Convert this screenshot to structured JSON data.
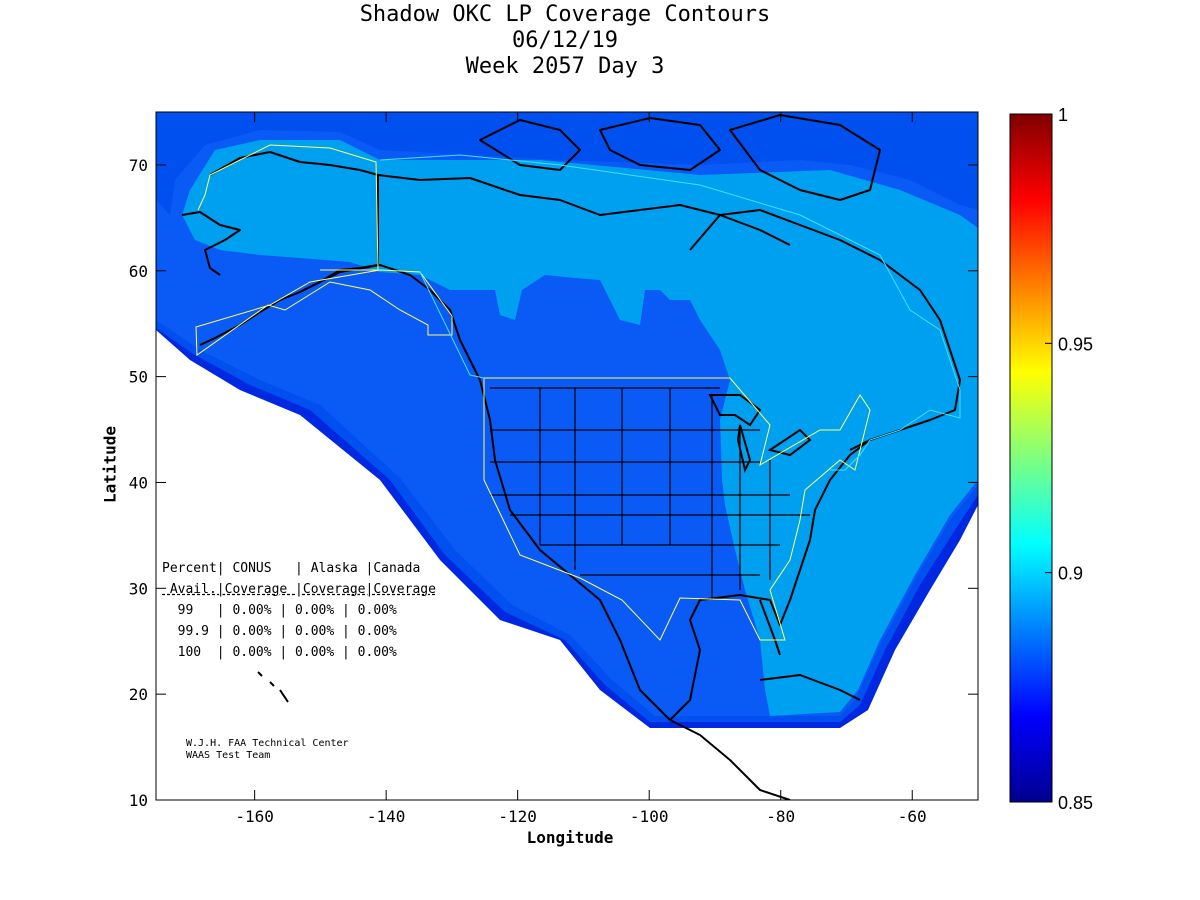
{
  "title": {
    "line1": "Shadow OKC LP Coverage Contours",
    "line2": "06/12/19",
    "line3": "Week 2057 Day 3"
  },
  "axes": {
    "xlabel": "Longitude",
    "ylabel": "Latitude",
    "xticks": [
      "-160",
      "-140",
      "-120",
      "-100",
      "-80",
      "-60"
    ],
    "yticks": [
      "70",
      "60",
      "50",
      "40",
      "30",
      "20",
      "10"
    ]
  },
  "colorbar": {
    "ticks": [
      "1",
      "0.95",
      "0.9",
      "0.85"
    ],
    "min": 0.85,
    "max": 1.0
  },
  "table": {
    "header1": "Percent| CONUS   | Alaska |Canada",
    "header2": " Avail.|Coverage |Coverage|Coverage",
    "rows": [
      "  99   | 0.00% | 0.00% | 0.00%",
      "  99.9 | 0.00% | 0.00% | 0.00%",
      "  100  | 0.00% | 0.00% | 0.00%"
    ]
  },
  "credit": {
    "line1": "W.J.H. FAA Technical Center",
    "line2": "WAAS Test Team"
  },
  "colors": {
    "outer": "#0064f0",
    "mid": "#0050f0",
    "conus": "#0a5af5",
    "light": "#00a0f0",
    "edge": "#0028e0",
    "boundary_yellow": "#ffff66",
    "boundary_cyan": "#40e0ff"
  }
}
